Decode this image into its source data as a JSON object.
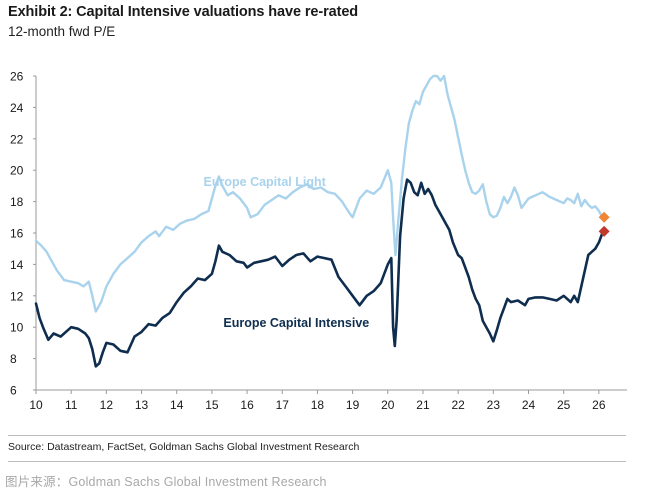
{
  "title": "Exhibit 2: Capital Intensive valuations have re-rated",
  "subtitle": "12-month fwd P/E",
  "source": "Source: Datastream, FactSet, Goldman Sachs Global Investment Research",
  "footer": "图片来源：Goldman Sachs Global Investment Research",
  "chart_data": {
    "type": "line",
    "title": "Exhibit 2: Capital Intensive valuations have re-rated",
    "ylabel": "12-month fwd P/E",
    "xlabel": "",
    "xlim": [
      2010,
      2026.8
    ],
    "ylim": [
      6,
      26
    ],
    "grid": false,
    "x_ticks": [
      "10",
      "11",
      "12",
      "13",
      "14",
      "15",
      "16",
      "17",
      "18",
      "19",
      "20",
      "21",
      "22",
      "23",
      "24",
      "25",
      "26"
    ],
    "y_ticks": [
      "6",
      "8",
      "10",
      "12",
      "14",
      "16",
      "18",
      "20",
      "22",
      "24",
      "26"
    ],
    "series": [
      {
        "name": "Europe Capital Light",
        "color": "#a9d3ed",
        "x": [
          2010.0,
          2010.15,
          2010.3,
          2010.45,
          2010.6,
          2010.8,
          2011.0,
          2011.2,
          2011.35,
          2011.5,
          2011.6,
          2011.7,
          2011.85,
          2012.0,
          2012.2,
          2012.4,
          2012.6,
          2012.8,
          2013.0,
          2013.2,
          2013.4,
          2013.5,
          2013.7,
          2013.9,
          2014.1,
          2014.3,
          2014.5,
          2014.7,
          2014.9,
          2015.0,
          2015.1,
          2015.2,
          2015.3,
          2015.45,
          2015.6,
          2015.8,
          2016.0,
          2016.1,
          2016.3,
          2016.5,
          2016.7,
          2016.9,
          2017.1,
          2017.3,
          2017.5,
          2017.7,
          2017.9,
          2018.1,
          2018.3,
          2018.5,
          2018.7,
          2018.9,
          2019.0,
          2019.2,
          2019.4,
          2019.6,
          2019.8,
          2020.0,
          2020.1,
          2020.15,
          2020.2,
          2020.22,
          2020.3,
          2020.4,
          2020.5,
          2020.6,
          2020.7,
          2020.8,
          2020.9,
          2021.0,
          2021.1,
          2021.2,
          2021.3,
          2021.4,
          2021.5,
          2021.6,
          2021.7,
          2021.8,
          2021.9,
          2022.0,
          2022.1,
          2022.2,
          2022.3,
          2022.4,
          2022.5,
          2022.6,
          2022.7,
          2022.8,
          2022.9,
          2023.0,
          2023.1,
          2023.2,
          2023.3,
          2023.4,
          2023.5,
          2023.6,
          2023.7,
          2023.8,
          2023.9,
          2024.0,
          2024.2,
          2024.4,
          2024.6,
          2024.8,
          2025.0,
          2025.1,
          2025.2,
          2025.3,
          2025.4,
          2025.5,
          2025.6,
          2025.7,
          2025.8,
          2025.9,
          2026.0,
          2026.1
        ],
        "values": [
          15.5,
          15.2,
          14.8,
          14.2,
          13.6,
          13.0,
          12.9,
          12.8,
          12.6,
          12.9,
          12.0,
          11.0,
          11.6,
          12.6,
          13.4,
          14.0,
          14.4,
          14.8,
          15.4,
          15.8,
          16.1,
          15.8,
          16.4,
          16.2,
          16.6,
          16.8,
          16.9,
          17.2,
          17.4,
          18.2,
          19.0,
          19.6,
          19.0,
          18.4,
          18.6,
          18.2,
          17.6,
          17.0,
          17.2,
          17.8,
          18.1,
          18.4,
          18.2,
          18.6,
          18.9,
          19.1,
          18.8,
          18.9,
          18.6,
          18.5,
          18.0,
          17.3,
          17.0,
          18.2,
          18.7,
          18.5,
          18.9,
          20.0,
          19.2,
          17.0,
          15.2,
          14.6,
          16.8,
          19.4,
          21.4,
          23.0,
          23.8,
          24.4,
          24.2,
          25.0,
          25.4,
          25.8,
          26.0,
          26.0,
          25.7,
          26.0,
          24.8,
          24.0,
          23.2,
          22.1,
          21.0,
          20.0,
          19.2,
          18.6,
          18.5,
          18.7,
          19.1,
          18.0,
          17.2,
          17.0,
          17.1,
          17.6,
          18.3,
          17.9,
          18.3,
          18.9,
          18.4,
          17.6,
          17.9,
          18.2,
          18.4,
          18.6,
          18.3,
          18.1,
          17.9,
          18.2,
          18.1,
          17.9,
          18.5,
          17.7,
          18.1,
          17.8,
          17.6,
          17.7,
          17.4,
          17.0
        ]
      },
      {
        "name": "Europe Capital Intensive",
        "color": "#0f2e4f",
        "x": [
          2010.0,
          2010.1,
          2010.2,
          2010.35,
          2010.5,
          2010.7,
          2010.9,
          2011.0,
          2011.2,
          2011.4,
          2011.5,
          2011.6,
          2011.7,
          2011.8,
          2011.9,
          2012.0,
          2012.2,
          2012.4,
          2012.6,
          2012.8,
          2013.0,
          2013.2,
          2013.4,
          2013.6,
          2013.8,
          2014.0,
          2014.2,
          2014.4,
          2014.6,
          2014.8,
          2015.0,
          2015.1,
          2015.2,
          2015.3,
          2015.5,
          2015.7,
          2015.9,
          2016.0,
          2016.2,
          2016.4,
          2016.6,
          2016.8,
          2017.0,
          2017.2,
          2017.4,
          2017.6,
          2017.8,
          2018.0,
          2018.2,
          2018.4,
          2018.6,
          2018.8,
          2019.0,
          2019.2,
          2019.4,
          2019.6,
          2019.8,
          2020.0,
          2020.1,
          2020.15,
          2020.2,
          2020.25,
          2020.35,
          2020.45,
          2020.55,
          2020.65,
          2020.75,
          2020.85,
          2020.95,
          2021.05,
          2021.15,
          2021.25,
          2021.35,
          2021.45,
          2021.55,
          2021.65,
          2021.75,
          2021.85,
          2022.0,
          2022.1,
          2022.2,
          2022.3,
          2022.4,
          2022.5,
          2022.6,
          2022.7,
          2022.8,
          2022.9,
          2023.0,
          2023.1,
          2023.2,
          2023.3,
          2023.4,
          2023.5,
          2023.7,
          2023.9,
          2024.0,
          2024.2,
          2024.4,
          2024.6,
          2024.8,
          2025.0,
          2025.1,
          2025.2,
          2025.3,
          2025.4,
          2025.5,
          2025.6,
          2025.7,
          2025.8,
          2025.9,
          2026.0,
          2026.1
        ],
        "values": [
          11.5,
          10.6,
          10.0,
          9.2,
          9.6,
          9.4,
          9.8,
          10.0,
          9.9,
          9.6,
          9.3,
          8.6,
          7.5,
          7.7,
          8.4,
          9.0,
          8.9,
          8.5,
          8.4,
          9.4,
          9.7,
          10.2,
          10.1,
          10.6,
          10.9,
          11.6,
          12.2,
          12.6,
          13.1,
          13.0,
          13.4,
          14.2,
          15.2,
          14.8,
          14.6,
          14.2,
          14.1,
          13.8,
          14.1,
          14.2,
          14.3,
          14.5,
          13.9,
          14.3,
          14.6,
          14.7,
          14.2,
          14.5,
          14.4,
          14.3,
          13.2,
          12.6,
          12.0,
          11.4,
          12.0,
          12.3,
          12.8,
          14.0,
          14.4,
          10.0,
          8.8,
          10.4,
          15.8,
          18.2,
          19.4,
          19.2,
          18.6,
          18.4,
          19.2,
          18.5,
          18.8,
          18.4,
          17.8,
          17.4,
          17.0,
          16.6,
          16.2,
          15.4,
          14.6,
          14.4,
          13.8,
          13.2,
          12.4,
          11.8,
          11.4,
          10.4,
          10.0,
          9.6,
          9.1,
          9.8,
          10.6,
          11.2,
          11.8,
          11.6,
          11.7,
          11.4,
          11.8,
          11.9,
          11.9,
          11.8,
          11.7,
          12.0,
          11.8,
          11.6,
          12.0,
          11.6,
          12.6,
          13.6,
          14.6,
          14.8,
          15.0,
          15.4,
          16.0
        ]
      }
    ],
    "annotations": [
      {
        "text": "Europe Capital Light",
        "x": 2016.5,
        "y": 19.0,
        "color": "#a9d3ed"
      },
      {
        "text": "Europe Capital Intensive",
        "x": 2017.4,
        "y": 10.0,
        "color": "#0f2e4f"
      }
    ],
    "markers": [
      {
        "series": "Europe Capital Light",
        "x": 2026.15,
        "y": 17.0,
        "color": "#ef8535",
        "shape": "diamond"
      },
      {
        "series": "Europe Capital Intensive",
        "x": 2026.15,
        "y": 16.1,
        "color": "#c0392b",
        "shape": "diamond"
      }
    ]
  }
}
